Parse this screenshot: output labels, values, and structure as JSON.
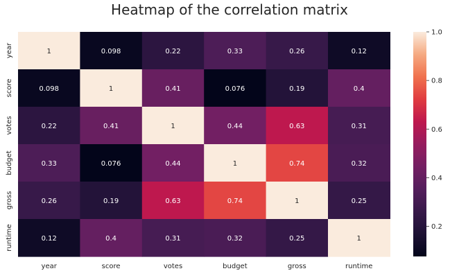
{
  "chart_data": {
    "type": "heatmap",
    "title": "Heatmap of the correlation matrix",
    "x_labels": [
      "year",
      "score",
      "votes",
      "budget",
      "gross",
      "runtime"
    ],
    "y_labels": [
      "year",
      "score",
      "votes",
      "budget",
      "gross",
      "runtime"
    ],
    "values": [
      [
        1,
        0.098,
        0.22,
        0.33,
        0.26,
        0.12
      ],
      [
        0.098,
        1,
        0.41,
        0.076,
        0.19,
        0.4
      ],
      [
        0.22,
        0.41,
        1,
        0.44,
        0.63,
        0.31
      ],
      [
        0.33,
        0.076,
        0.44,
        1,
        0.74,
        0.32
      ],
      [
        0.26,
        0.19,
        0.63,
        0.74,
        1,
        0.25
      ],
      [
        0.12,
        0.4,
        0.31,
        0.32,
        0.25,
        1
      ]
    ],
    "annotations": [
      [
        "1",
        "0.098",
        "0.22",
        "0.33",
        "0.26",
        "0.12"
      ],
      [
        "0.098",
        "1",
        "0.41",
        "0.076",
        "0.19",
        "0.4"
      ],
      [
        "0.22",
        "0.41",
        "1",
        "0.44",
        "0.63",
        "0.31"
      ],
      [
        "0.33",
        "0.076",
        "0.44",
        "1",
        "0.74",
        "0.32"
      ],
      [
        "0.26",
        "0.19",
        "0.63",
        "0.74",
        "1",
        "0.25"
      ],
      [
        "0.12",
        "0.4",
        "0.31",
        "0.32",
        "0.25",
        "1"
      ]
    ],
    "colormap": "rocket",
    "vmin": 0.076,
    "vmax": 1,
    "colorbar_ticks": [
      "0.2",
      "0.4",
      "0.6",
      "0.8",
      "1.0"
    ],
    "grid": false,
    "colorbar": "right"
  }
}
